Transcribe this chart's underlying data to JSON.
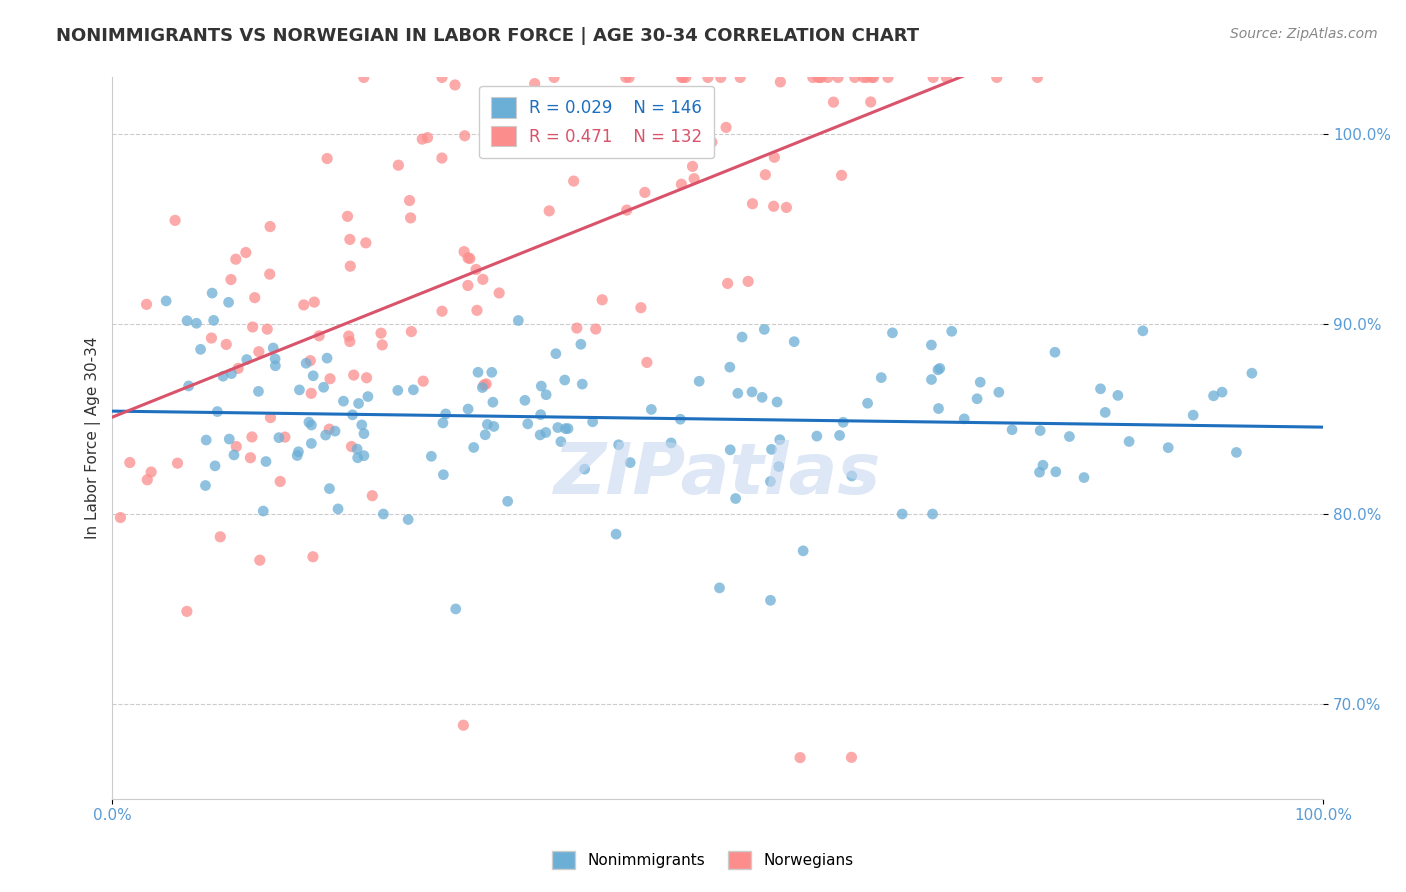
{
  "title": "NONIMMIGRANTS VS NORWEGIAN IN LABOR FORCE | AGE 30-34 CORRELATION CHART",
  "source": "Source: ZipAtlas.com",
  "ylabel": "In Labor Force | Age 30-34",
  "xlim": [
    0.0,
    1.0
  ],
  "ylim": [
    0.65,
    1.03
  ],
  "yticks": [
    0.7,
    0.8,
    0.9,
    1.0
  ],
  "ytick_labels": [
    "70.0%",
    "80.0%",
    "90.0%",
    "100.0%"
  ],
  "xtick_labels": [
    "0.0%",
    "100.0%"
  ],
  "blue_R": 0.029,
  "blue_N": 146,
  "pink_R": 0.471,
  "pink_N": 132,
  "blue_color": "#6baed6",
  "pink_color": "#fc8d8d",
  "blue_line_color": "#1f6fbf",
  "pink_line_color": "#d9536a",
  "background_color": "#ffffff",
  "grid_color": "#cccccc",
  "title_color": "#333333",
  "axis_label_color": "#333333",
  "tick_label_color": "#5b9bd5",
  "watermark": "ZIPatlas",
  "watermark_color": "#c8d8f0"
}
